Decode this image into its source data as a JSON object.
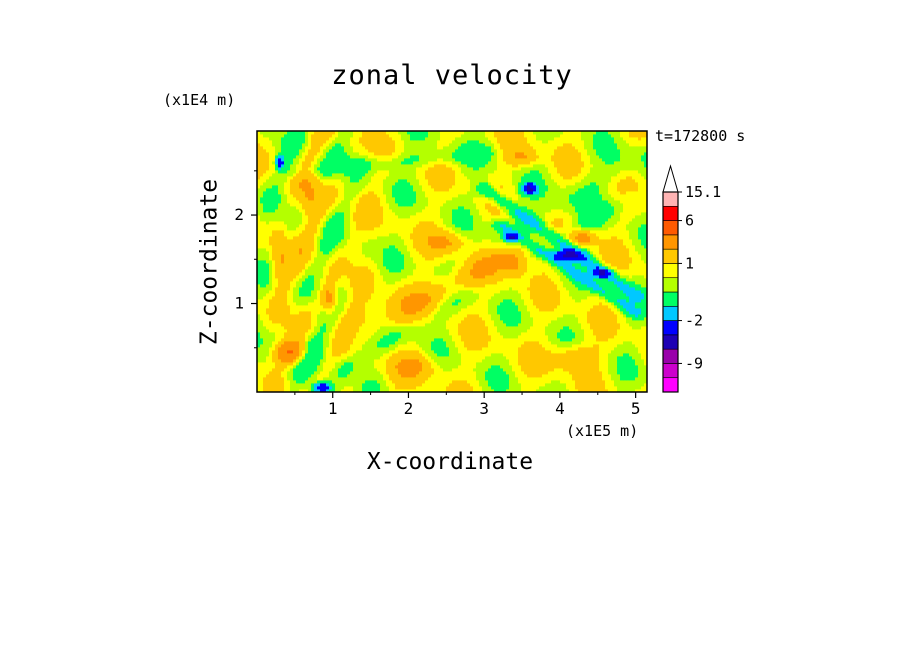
{
  "chart_data": {
    "type": "heatmap",
    "subtype": "filled-contour",
    "title": "zonal velocity",
    "xlabel": "X-coordinate",
    "ylabel": "Z-coordinate",
    "x_unit_label": "(x1E5 m)",
    "y_unit_label": "(x1E4 m)",
    "annotation": "t=172800 s",
    "xlim": [
      0,
      5.15
    ],
    "ylim": [
      0,
      2.95
    ],
    "xticks": [
      1,
      2,
      3,
      4,
      5
    ],
    "yticks": [
      1,
      2
    ],
    "xtick_labels": [
      "1",
      "2",
      "3",
      "4",
      "5"
    ],
    "ytick_labels": [
      "1",
      "2"
    ],
    "colorbar": {
      "placement": "right",
      "extend_max": true,
      "tick_labels": [
        "15.1",
        "6",
        "1",
        "-2",
        "-9"
      ],
      "tick_levels": [
        15.1,
        6,
        1,
        -2,
        -9
      ],
      "bands": [
        {
          "lo": -15,
          "hi": -12,
          "color": "#ff00ff"
        },
        {
          "lo": -12,
          "hi": -9,
          "color": "#cc00cc"
        },
        {
          "lo": -9,
          "hi": -6,
          "color": "#9900aa"
        },
        {
          "lo": -6,
          "hi": -4,
          "color": "#1e00b4"
        },
        {
          "lo": -4,
          "hi": -2,
          "color": "#0000ff"
        },
        {
          "lo": -2,
          "hi": -1,
          "color": "#00c8ff"
        },
        {
          "lo": -1,
          "hi": 0,
          "color": "#00ff64"
        },
        {
          "lo": 0,
          "hi": 0.5,
          "color": "#b4ff00"
        },
        {
          "lo": 0.5,
          "hi": 1,
          "color": "#ffff00"
        },
        {
          "lo": 1,
          "hi": 2,
          "color": "#ffc800"
        },
        {
          "lo": 2,
          "hi": 4,
          "color": "#ff9600"
        },
        {
          "lo": 4,
          "hi": 6,
          "color": "#ff5a00"
        },
        {
          "lo": 6,
          "hi": 10,
          "color": "#ff0000"
        },
        {
          "lo": 10,
          "hi": 15.1,
          "color": "#ffb4b4"
        }
      ],
      "extension_color": "#ffffff"
    },
    "field_features": [
      {
        "kind": "background",
        "value": 0.6
      },
      {
        "kind": "band",
        "x0": 0.3,
        "z0": 0.2,
        "x1": 5.1,
        "z1": 2.7,
        "width": 0.25,
        "value": -0.5
      },
      {
        "kind": "band",
        "x0": 1.2,
        "z0": 0.3,
        "x1": 4.9,
        "z1": 2.2,
        "width": 0.18,
        "value": -0.6
      },
      {
        "kind": "band",
        "x0": 3.0,
        "z0": 2.3,
        "x1": 5.0,
        "z1": 1.1,
        "width": 0.12,
        "value": -1.8
      },
      {
        "kind": "band",
        "x0": 3.2,
        "z0": 1.9,
        "x1": 5.0,
        "z1": 0.9,
        "width": 0.1,
        "value": -1.6
      },
      {
        "kind": "band",
        "x0": 1.5,
        "z0": 0.8,
        "x1": 3.5,
        "z1": 1.6,
        "width": 0.3,
        "value": 1.5
      },
      {
        "kind": "band",
        "x0": 0.5,
        "z0": 2.5,
        "x1": 3.0,
        "z1": 2.7,
        "width": 0.15,
        "value": -0.7
      },
      {
        "kind": "spot",
        "x": 0.45,
        "z": 0.45,
        "rx": 0.18,
        "rz": 0.12,
        "value": 3.5
      },
      {
        "kind": "spot",
        "x": 0.95,
        "z": 1.05,
        "rx": 0.1,
        "rz": 0.15,
        "value": 2.5
      },
      {
        "kind": "spot",
        "x": 3.6,
        "z": 2.3,
        "rx": 0.1,
        "rz": 0.06,
        "value": -4.5
      },
      {
        "kind": "spot",
        "x": 4.1,
        "z": 1.55,
        "rx": 0.18,
        "rz": 0.06,
        "value": -4.5
      },
      {
        "kind": "spot",
        "x": 4.55,
        "z": 1.35,
        "rx": 0.12,
        "rz": 0.05,
        "value": -4.0
      },
      {
        "kind": "spot",
        "x": 3.35,
        "z": 1.75,
        "rx": 0.08,
        "rz": 0.04,
        "value": -4.0
      },
      {
        "kind": "spot",
        "x": 0.85,
        "z": 0.05,
        "rx": 0.12,
        "rz": 0.06,
        "value": -4.5
      },
      {
        "kind": "spot",
        "x": 0.3,
        "z": 2.6,
        "rx": 0.05,
        "rz": 0.07,
        "value": -4.0
      },
      {
        "kind": "spot",
        "x": 4.3,
        "z": 1.75,
        "rx": 0.15,
        "rz": 0.08,
        "value": 2.5
      },
      {
        "kind": "spot",
        "x": 3.4,
        "z": 1.45,
        "rx": 0.15,
        "rz": 0.12,
        "value": 1.8
      },
      {
        "kind": "spot",
        "x": 2.5,
        "z": 1.7,
        "rx": 0.25,
        "rz": 0.12,
        "value": 1.5
      },
      {
        "kind": "spot",
        "x": 3.5,
        "z": 2.65,
        "rx": 0.2,
        "rz": 0.1,
        "value": 1.5
      },
      {
        "kind": "spot",
        "x": 4.2,
        "z": 0.4,
        "rx": 0.3,
        "rz": 0.15,
        "value": 1.5
      },
      {
        "kind": "spot",
        "x": 2.1,
        "z": 0.3,
        "rx": 0.3,
        "rz": 0.15,
        "value": 1.4
      },
      {
        "kind": "spot",
        "x": 0.3,
        "z": 1.5,
        "rx": 0.12,
        "rz": 0.3,
        "value": 1.6
      },
      {
        "kind": "spot",
        "x": 0.7,
        "z": 2.2,
        "rx": 0.15,
        "rz": 0.25,
        "value": 1.4
      }
    ]
  }
}
